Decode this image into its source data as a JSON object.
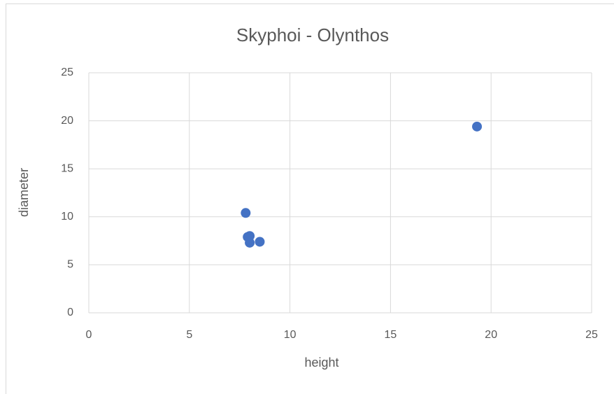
{
  "chart_data": {
    "type": "scatter",
    "title": "Skyphoi - Olynthos",
    "x_label": "height",
    "y_label": "diameter",
    "series": [
      {
        "name": "diameter",
        "color": "#4472c4",
        "x": [
          19.3,
          7.8,
          7.9,
          8.0,
          8.0,
          8.5
        ],
        "values": [
          19.4,
          10.4,
          7.9,
          8.0,
          7.3,
          7.4
        ]
      }
    ],
    "xlim": [
      0,
      25
    ],
    "xticks": [
      0,
      5,
      10,
      15,
      20,
      25
    ],
    "ylim": [
      0,
      25
    ],
    "yticks": [
      0,
      5,
      10,
      15,
      20,
      25
    ],
    "grid": true
  }
}
